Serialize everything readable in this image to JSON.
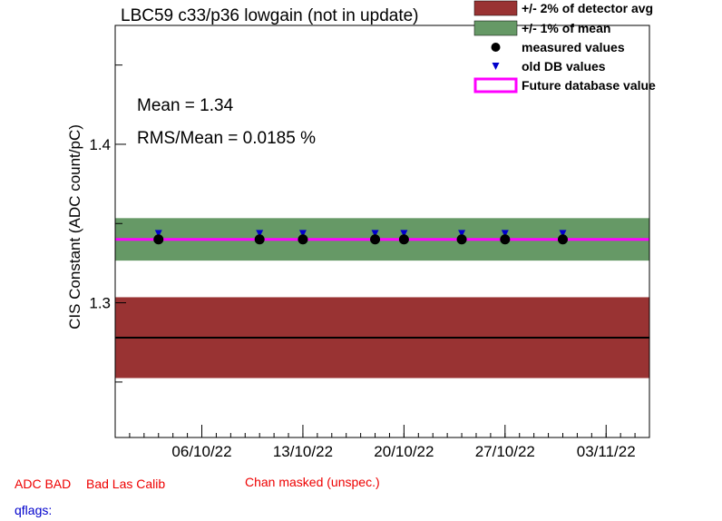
{
  "chart_data": {
    "type": "scatter",
    "title": "LBC59 c33/p36 lowgain (not in update)",
    "ylabel": "CIS Constant (ADC count/pC)",
    "xlabel": "",
    "ylim": [
      1.215,
      1.475
    ],
    "xlim": [
      "2022-09-30",
      "2022-11-06"
    ],
    "x_tick_labels": [
      "06/10/22",
      "13/10/22",
      "20/10/22",
      "27/10/22",
      "03/11/22"
    ],
    "x_tick_dates": [
      "2022-10-06",
      "2022-10-13",
      "2022-10-20",
      "2022-10-27",
      "2022-11-03"
    ],
    "y_tick_labels": [
      1.3,
      1.4
    ],
    "legend_position": "top-right",
    "annotations": {
      "mean": "Mean = 1.34",
      "rms": "RMS/Mean = 0.0185 %"
    },
    "detector_avg": 1.278,
    "detector_band": [
      1.2525,
      1.3035
    ],
    "mean_value": 1.34,
    "mean_band": [
      1.3266,
      1.3534
    ],
    "future_db_value": 1.34,
    "series": [
      {
        "name": "measured values",
        "x": [
          "2022-10-03",
          "2022-10-10",
          "2022-10-13",
          "2022-10-18",
          "2022-10-20",
          "2022-10-24",
          "2022-10-27",
          "2022-10-31"
        ],
        "values": [
          1.34,
          1.34,
          1.34,
          1.34,
          1.34,
          1.34,
          1.34,
          1.34
        ]
      },
      {
        "name": "old DB values",
        "x": [
          "2022-10-03",
          "2022-10-10",
          "2022-10-13",
          "2022-10-18",
          "2022-10-20",
          "2022-10-24",
          "2022-10-27",
          "2022-10-31"
        ],
        "values": [
          1.3425,
          1.3425,
          1.3425,
          1.3425,
          1.3425,
          1.3425,
          1.3425,
          1.3425
        ]
      }
    ],
    "legend": [
      {
        "label": "+/- 2% of detector avg",
        "color": "#993333"
      },
      {
        "label": "+/- 1% of mean",
        "color": "#669966"
      },
      {
        "label": "measured values",
        "color": "#000000"
      },
      {
        "label": "old DB values",
        "color": "#0000cc"
      },
      {
        "label": "Future database value",
        "color": "#ff00ff"
      }
    ],
    "colors": {
      "detector_band": "#993333",
      "mean_band": "#669966",
      "future_line": "#ff00ff",
      "measured": "#000000",
      "old_db": "#0000cc",
      "avg_line": "#000000"
    }
  },
  "flags": {
    "adc_bad": "ADC BAD",
    "bad_las_calib": "Bad Las Calib",
    "chan_masked": "Chan masked (unspec.)",
    "qflags": "qflags:"
  }
}
